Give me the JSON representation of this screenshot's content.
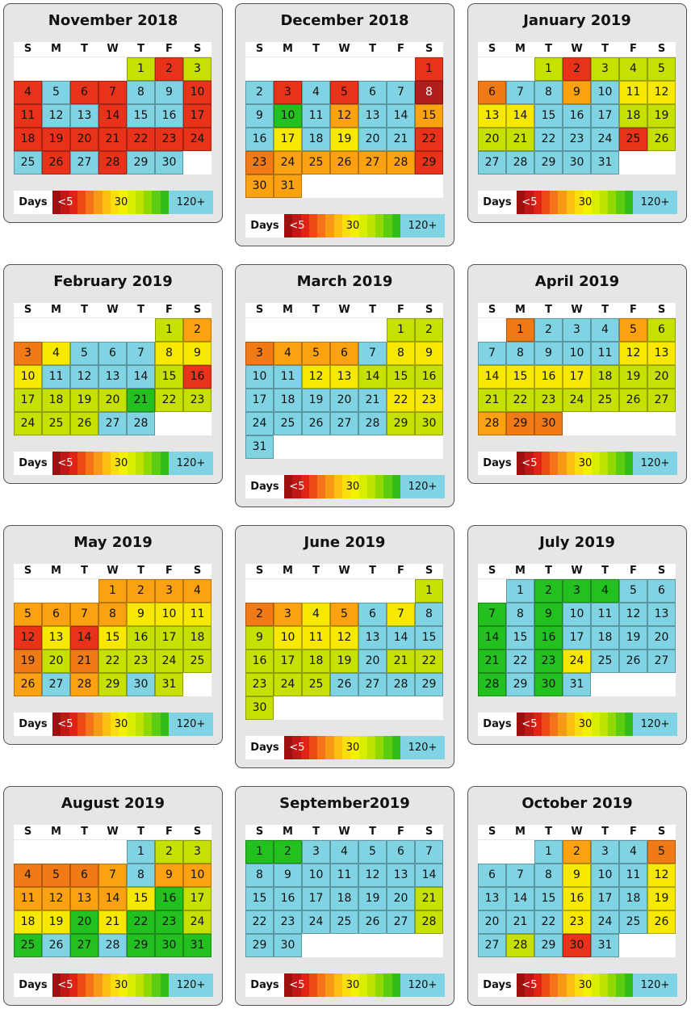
{
  "weekday_labels": [
    "S",
    "M",
    "T",
    "W",
    "T",
    "F",
    "S"
  ],
  "legend": {
    "label": "Days",
    "min": "<5",
    "mid": "30",
    "max": "120+"
  },
  "colors": {
    "dr": "#b31c1c",
    "rd": "#e8321a",
    "oo": "#f07a16",
    "or": "#fca111",
    "yl": "#f6e800",
    "yg": "#c6e000",
    "gr": "#23c11f",
    "bl": "#7fd3e3"
  },
  "legend_scale": [
    "#9e1010",
    "#c01717",
    "#df2415",
    "#ee4b14",
    "#f5741a",
    "#f99a16",
    "#fbbf12",
    "#f9dd0c",
    "#f3f000",
    "#d8ee00",
    "#bfe300",
    "#8fd800",
    "#5ccd10",
    "#33bd1a"
  ],
  "months": [
    {
      "title": "November 2018",
      "first_weekday": 4,
      "days": 30,
      "colors": [
        "yg",
        "rd",
        "yg",
        "rd",
        "bl",
        "rd",
        "rd",
        "bl",
        "bl",
        "rd",
        "rd",
        "bl",
        "bl",
        "rd",
        "bl",
        "bl",
        "rd",
        "rd",
        "rd",
        "rd",
        "rd",
        "rd",
        "rd",
        "rd",
        "bl",
        "rd",
        "bl",
        "rd",
        "bl",
        "bl"
      ]
    },
    {
      "title": "December 2018",
      "first_weekday": 6,
      "days": 31,
      "colors": [
        "rd",
        "bl",
        "rd",
        "bl",
        "rd",
        "bl",
        "bl",
        "dr",
        "bl",
        "gr",
        "bl",
        "or",
        "bl",
        "bl",
        "or",
        "bl",
        "yl",
        "bl",
        "yl",
        "bl",
        "bl",
        "rd",
        "oo",
        "or",
        "or",
        "or",
        "or",
        "or",
        "rd",
        "or",
        "or"
      ]
    },
    {
      "title": "January 2019",
      "first_weekday": 2,
      "days": 31,
      "colors": [
        "yg",
        "rd",
        "yg",
        "yg",
        "yg",
        "oo",
        "bl",
        "bl",
        "or",
        "bl",
        "yl",
        "yl",
        "yl",
        "yl",
        "bl",
        "bl",
        "bl",
        "yg",
        "yg",
        "yg",
        "yg",
        "bl",
        "bl",
        "bl",
        "rd",
        "yg",
        "bl",
        "bl",
        "bl",
        "bl",
        "bl"
      ]
    },
    {
      "title": "February 2019",
      "first_weekday": 5,
      "days": 28,
      "colors": [
        "yg",
        "or",
        "oo",
        "yl",
        "bl",
        "bl",
        "bl",
        "yl",
        "yl",
        "yl",
        "bl",
        "bl",
        "bl",
        "bl",
        "yg",
        "rd",
        "yg",
        "yg",
        "yg",
        "yg",
        "gr",
        "yg",
        "yg",
        "yg",
        "yg",
        "yg",
        "bl",
        "bl"
      ]
    },
    {
      "title": "March 2019",
      "first_weekday": 5,
      "days": 31,
      "colors": [
        "yg",
        "yg",
        "oo",
        "or",
        "or",
        "or",
        "bl",
        "yl",
        "yl",
        "bl",
        "bl",
        "yl",
        "yl",
        "yg",
        "yg",
        "yg",
        "bl",
        "bl",
        "bl",
        "bl",
        "bl",
        "yl",
        "yl",
        "bl",
        "bl",
        "bl",
        "bl",
        "bl",
        "yg",
        "yg",
        "bl"
      ]
    },
    {
      "title": "April 2019",
      "first_weekday": 1,
      "days": 30,
      "colors": [
        "oo",
        "bl",
        "bl",
        "bl",
        "or",
        "yg",
        "bl",
        "bl",
        "bl",
        "bl",
        "bl",
        "yl",
        "yl",
        "yl",
        "yl",
        "yl",
        "yl",
        "yg",
        "yg",
        "yg",
        "yg",
        "yg",
        "yg",
        "yg",
        "yg",
        "yg",
        "yg",
        "or",
        "oo",
        "oo"
      ]
    },
    {
      "title": "May 2019",
      "first_weekday": 3,
      "days": 31,
      "colors": [
        "or",
        "or",
        "or",
        "or",
        "or",
        "or",
        "or",
        "or",
        "yl",
        "yl",
        "yl",
        "rd",
        "yl",
        "rd",
        "yl",
        "yg",
        "yg",
        "yg",
        "oo",
        "yg",
        "oo",
        "yg",
        "yg",
        "yg",
        "yg",
        "or",
        "bl",
        "or",
        "yg",
        "bl",
        "yg"
      ]
    },
    {
      "title": "June 2019",
      "first_weekday": 6,
      "days": 30,
      "colors": [
        "yg",
        "oo",
        "or",
        "yl",
        "or",
        "bl",
        "yl",
        "bl",
        "yg",
        "yl",
        "yl",
        "yl",
        "bl",
        "bl",
        "bl",
        "yg",
        "yg",
        "yg",
        "yg",
        "bl",
        "yg",
        "yg",
        "yg",
        "yg",
        "yg",
        "bl",
        "bl",
        "bl",
        "bl",
        "yg"
      ]
    },
    {
      "title": "July 2019",
      "first_weekday": 1,
      "days": 31,
      "colors": [
        "bl",
        "gr",
        "gr",
        "gr",
        "bl",
        "bl",
        "gr",
        "bl",
        "gr",
        "bl",
        "bl",
        "bl",
        "bl",
        "gr",
        "bl",
        "gr",
        "bl",
        "bl",
        "bl",
        "bl",
        "gr",
        "bl",
        "gr",
        "yl",
        "bl",
        "bl",
        "bl",
        "gr",
        "bl",
        "gr",
        "bl"
      ]
    },
    {
      "title": "August 2019",
      "first_weekday": 4,
      "days": 31,
      "colors": [
        "bl",
        "yg",
        "yg",
        "oo",
        "oo",
        "oo",
        "or",
        "bl",
        "or",
        "or",
        "or",
        "or",
        "or",
        "or",
        "yl",
        "gr",
        "yg",
        "yl",
        "yl",
        "gr",
        "yl",
        "gr",
        "gr",
        "yg",
        "gr",
        "bl",
        "gr",
        "bl",
        "gr",
        "gr",
        "gr"
      ]
    },
    {
      "title": "September2019",
      "first_weekday": 0,
      "days": 30,
      "colors": [
        "gr",
        "gr",
        "bl",
        "bl",
        "bl",
        "bl",
        "bl",
        "bl",
        "bl",
        "bl",
        "bl",
        "bl",
        "bl",
        "bl",
        "bl",
        "bl",
        "bl",
        "bl",
        "bl",
        "bl",
        "yg",
        "bl",
        "bl",
        "bl",
        "bl",
        "bl",
        "bl",
        "yg",
        "bl",
        "bl"
      ]
    },
    {
      "title": "October 2019",
      "first_weekday": 2,
      "days": 31,
      "colors": [
        "bl",
        "or",
        "bl",
        "bl",
        "oo",
        "bl",
        "bl",
        "bl",
        "yl",
        "bl",
        "bl",
        "yl",
        "bl",
        "bl",
        "bl",
        "yl",
        "bl",
        "bl",
        "yl",
        "bl",
        "bl",
        "bl",
        "yl",
        "bl",
        "bl",
        "yl",
        "bl",
        "yg",
        "bl",
        "rd",
        "bl"
      ]
    }
  ]
}
